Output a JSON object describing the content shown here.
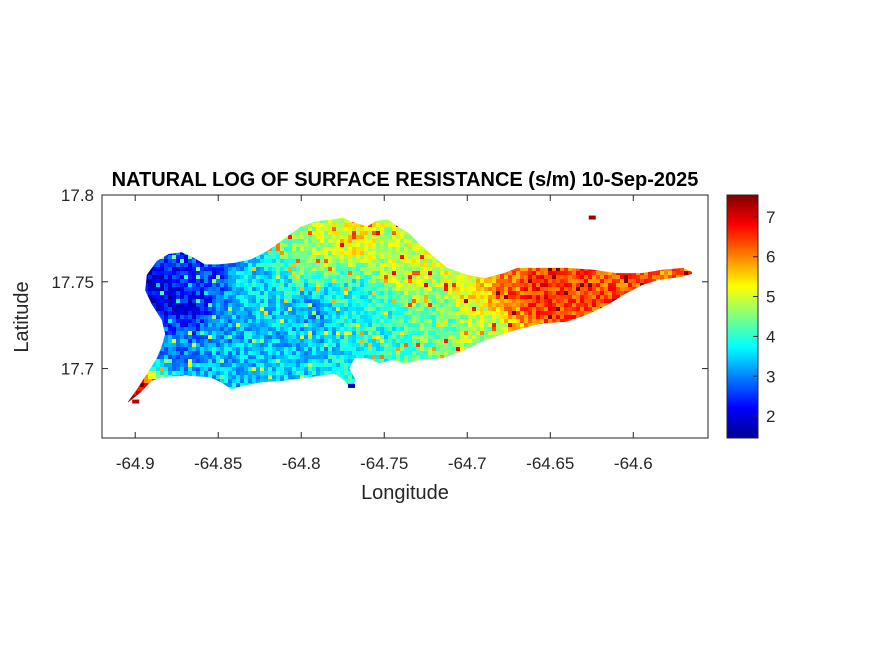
{
  "chart_data": {
    "type": "heatmap",
    "title": "NATURAL LOG OF SURFACE RESISTANCE (s/m) 10-Sep-2025",
    "xlabel": "Longitude",
    "ylabel": "Latitude",
    "xlim": [
      -64.92,
      -64.555
    ],
    "ylim": [
      17.66,
      17.8
    ],
    "xticks": [
      -64.9,
      -64.85,
      -64.8,
      -64.75,
      -64.7,
      -64.65,
      -64.6
    ],
    "xtick_labels": [
      "-64.9",
      "-64.85",
      "-64.8",
      "-64.75",
      "-64.7",
      "-64.65",
      "-64.6"
    ],
    "yticks": [
      17.7,
      17.75,
      17.8
    ],
    "ytick_labels": [
      "17.7",
      "17.75",
      "17.8"
    ],
    "colorbar": {
      "colormap": "jet",
      "range": [
        1.45,
        7.55
      ],
      "ticks": [
        2,
        3,
        4,
        5,
        6,
        7
      ],
      "tick_labels": [
        "2",
        "3",
        "4",
        "5",
        "6",
        "7"
      ]
    },
    "grid": false,
    "island_outline": [
      [
        -64.905,
        17.68
      ],
      [
        -64.897,
        17.686
      ],
      [
        -64.89,
        17.693
      ],
      [
        -64.884,
        17.695
      ],
      [
        -64.87,
        17.696
      ],
      [
        -64.855,
        17.695
      ],
      [
        -64.848,
        17.692
      ],
      [
        -64.842,
        17.688
      ],
      [
        -64.835,
        17.69
      ],
      [
        -64.825,
        17.692
      ],
      [
        -64.81,
        17.693
      ],
      [
        -64.795,
        17.695
      ],
      [
        -64.78,
        17.697
      ],
      [
        -64.775,
        17.694
      ],
      [
        -64.77,
        17.689
      ],
      [
        -64.767,
        17.693
      ],
      [
        -64.771,
        17.7
      ],
      [
        -64.768,
        17.706
      ],
      [
        -64.76,
        17.706
      ],
      [
        -64.753,
        17.703
      ],
      [
        -64.745,
        17.705
      ],
      [
        -64.738,
        17.703
      ],
      [
        -64.728,
        17.705
      ],
      [
        -64.715,
        17.706
      ],
      [
        -64.703,
        17.71
      ],
      [
        -64.69,
        17.716
      ],
      [
        -64.678,
        17.72
      ],
      [
        -64.668,
        17.723
      ],
      [
        -64.655,
        17.726
      ],
      [
        -64.64,
        17.727
      ],
      [
        -64.628,
        17.731
      ],
      [
        -64.615,
        17.737
      ],
      [
        -64.605,
        17.743
      ],
      [
        -64.595,
        17.748
      ],
      [
        -64.585,
        17.751
      ],
      [
        -64.57,
        17.753
      ],
      [
        -64.563,
        17.755
      ],
      [
        -64.57,
        17.758
      ],
      [
        -64.582,
        17.757
      ],
      [
        -64.595,
        17.755
      ],
      [
        -64.61,
        17.755
      ],
      [
        -64.625,
        17.757
      ],
      [
        -64.64,
        17.758
      ],
      [
        -64.655,
        17.758
      ],
      [
        -64.67,
        17.758
      ],
      [
        -64.678,
        17.755
      ],
      [
        -64.69,
        17.752
      ],
      [
        -64.7,
        17.754
      ],
      [
        -64.712,
        17.758
      ],
      [
        -64.722,
        17.766
      ],
      [
        -64.73,
        17.773
      ],
      [
        -64.735,
        17.778
      ],
      [
        -64.742,
        17.782
      ],
      [
        -64.748,
        17.786
      ],
      [
        -64.755,
        17.785
      ],
      [
        -64.76,
        17.782
      ],
      [
        -64.768,
        17.784
      ],
      [
        -64.775,
        17.787
      ],
      [
        -64.78,
        17.786
      ],
      [
        -64.79,
        17.785
      ],
      [
        -64.8,
        17.782
      ],
      [
        -64.81,
        17.775
      ],
      [
        -64.82,
        17.768
      ],
      [
        -64.83,
        17.763
      ],
      [
        -64.84,
        17.761
      ],
      [
        -64.85,
        17.76
      ],
      [
        -64.858,
        17.76
      ],
      [
        -64.865,
        17.764
      ],
      [
        -64.872,
        17.767
      ],
      [
        -64.88,
        17.766
      ],
      [
        -64.887,
        17.762
      ],
      [
        -64.893,
        17.754
      ],
      [
        -64.894,
        17.745
      ],
      [
        -64.89,
        17.737
      ],
      [
        -64.884,
        17.728
      ],
      [
        -64.882,
        17.72
      ],
      [
        -64.884,
        17.713
      ],
      [
        -64.887,
        17.706
      ],
      [
        -64.893,
        17.697
      ],
      [
        -64.899,
        17.688
      ]
    ],
    "field_control_points": [
      {
        "lon": -64.885,
        "lat": 17.742,
        "value": 2.0
      },
      {
        "lon": -64.87,
        "lat": 17.735,
        "value": 2.2
      },
      {
        "lon": -64.86,
        "lat": 17.752,
        "value": 2.5
      },
      {
        "lon": -64.875,
        "lat": 17.712,
        "value": 3.0
      },
      {
        "lon": -64.85,
        "lat": 17.712,
        "value": 3.3
      },
      {
        "lon": -64.83,
        "lat": 17.745,
        "value": 3.6
      },
      {
        "lon": -64.815,
        "lat": 17.715,
        "value": 3.4
      },
      {
        "lon": -64.79,
        "lat": 17.73,
        "value": 3.2
      },
      {
        "lon": -64.77,
        "lat": 17.74,
        "value": 3.8
      },
      {
        "lon": -64.79,
        "lat": 17.77,
        "value": 4.8
      },
      {
        "lon": -64.77,
        "lat": 17.775,
        "value": 5.3
      },
      {
        "lon": -64.75,
        "lat": 17.725,
        "value": 3.9
      },
      {
        "lon": -64.735,
        "lat": 17.76,
        "value": 5.0
      },
      {
        "lon": -64.715,
        "lat": 17.73,
        "value": 4.3
      },
      {
        "lon": -64.7,
        "lat": 17.745,
        "value": 5.3
      },
      {
        "lon": -64.69,
        "lat": 17.722,
        "value": 4.7
      },
      {
        "lon": -64.675,
        "lat": 17.745,
        "value": 6.2
      },
      {
        "lon": -64.655,
        "lat": 17.745,
        "value": 6.6
      },
      {
        "lon": -64.635,
        "lat": 17.742,
        "value": 6.4
      },
      {
        "lon": -64.61,
        "lat": 17.75,
        "value": 6.3
      },
      {
        "lon": -64.575,
        "lat": 17.754,
        "value": 6.1
      },
      {
        "lon": -64.9,
        "lat": 17.683,
        "value": 6.8
      }
    ],
    "hotspots": [
      {
        "lon": -64.625,
        "lat": 17.787,
        "value": 7.4
      },
      {
        "lon": -64.9,
        "lat": 17.681,
        "value": 7.2
      },
      {
        "lon": -64.77,
        "lat": 17.69,
        "value": 2.0
      }
    ]
  }
}
